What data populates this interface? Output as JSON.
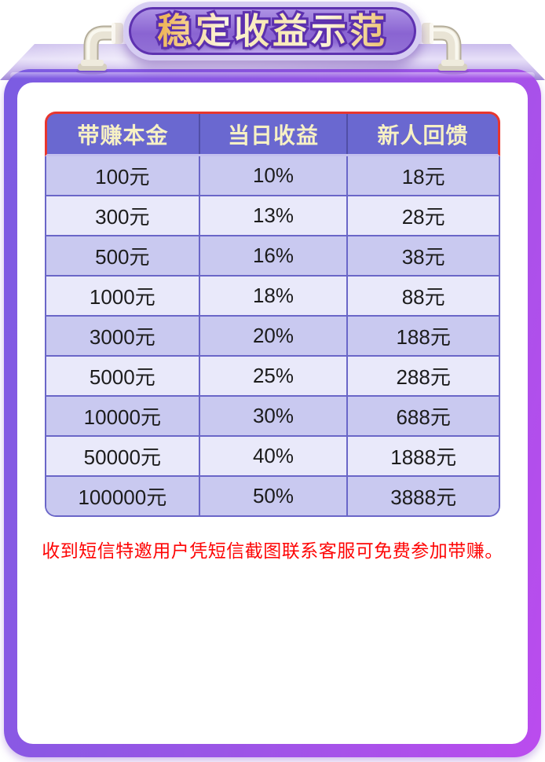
{
  "badge": {
    "title": "稳定收益示范"
  },
  "table": {
    "headers": [
      "带赚本金",
      "当日收益",
      "新人回馈"
    ],
    "rows": [
      [
        "100元",
        "10%",
        "18元"
      ],
      [
        "300元",
        "13%",
        "28元"
      ],
      [
        "500元",
        "16%",
        "38元"
      ],
      [
        "1000元",
        "18%",
        "88元"
      ],
      [
        "3000元",
        "20%",
        "188元"
      ],
      [
        "5000元",
        "25%",
        "288元"
      ],
      [
        "10000元",
        "30%",
        "688元"
      ],
      [
        "50000元",
        "40%",
        "1888元"
      ],
      [
        "100000元",
        "50%",
        "3888元"
      ]
    ]
  },
  "notice": "收到短信特邀用户凭短信截图联系客服可免费参加带赚。",
  "colors": {
    "frame_gradient_start": "#7b5ce2",
    "frame_gradient_end": "#bb4cee",
    "top_face": "#d8ccf0",
    "badge_fill": "#8a64d2",
    "badge_ring": "#d6cdf2",
    "badge_outline": "#5c30ae",
    "title_gold": "#efb75c",
    "title_cream": "#fdf7e0",
    "table_border_red": "#e8362e",
    "header_bg": "#6a68d0",
    "header_text": "#f7f1c4",
    "row_odd": "#c9c9f0",
    "row_even": "#e9e9fa",
    "cell_border": "#6a66c8",
    "notice_red": "#fe0505",
    "pipe_silver": "#e9e4d5"
  }
}
